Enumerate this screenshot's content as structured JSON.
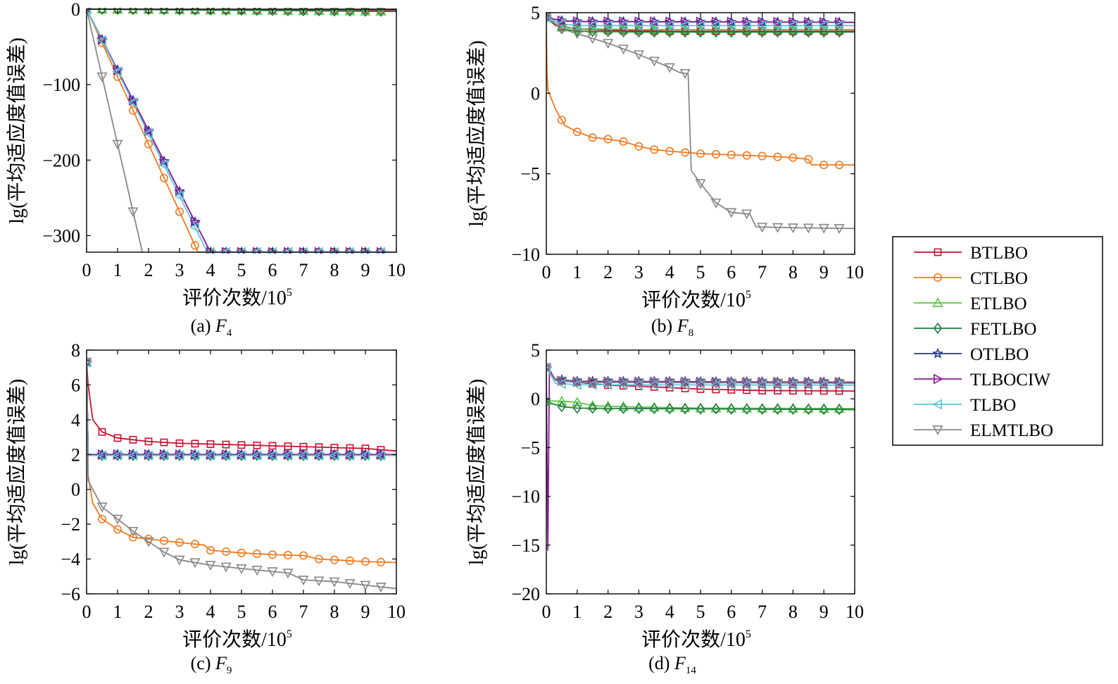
{
  "figure": {
    "legend": {
      "placement": "right",
      "entries": [
        {
          "name": "BTLBO",
          "color": "#c8102e",
          "marker": "square"
        },
        {
          "name": "CTLBO",
          "color": "#ee7b22",
          "marker": "circle"
        },
        {
          "name": "ETLBO",
          "color": "#5cc341",
          "marker": "triangle-up"
        },
        {
          "name": "FETLBO",
          "color": "#1e7a43",
          "marker": "diamond"
        },
        {
          "name": "OTLBO",
          "color": "#273a8c",
          "marker": "star"
        },
        {
          "name": "TLBOCIW",
          "color": "#8a1c9b",
          "marker": "triangle-right"
        },
        {
          "name": "TLBO",
          "color": "#5ec8da",
          "marker": "triangle-left"
        },
        {
          "name": "ELMTLBO",
          "color": "#888888",
          "marker": "triangle-down"
        }
      ]
    }
  },
  "chart_data": [
    {
      "type": "line",
      "caption_prefix": "(a) ",
      "caption_fn": "F",
      "caption_sub": "4",
      "xlabel": "评价次数/10",
      "xlabel_sup": "5",
      "ylabel": "lg(平均适应度值误差)",
      "xlim": [
        0,
        10
      ],
      "ylim": [
        -322,
        0
      ],
      "xticks": [
        0,
        1,
        2,
        3,
        4,
        5,
        6,
        7,
        8,
        9,
        10
      ],
      "yticks": [
        0,
        -100,
        -200,
        -300
      ],
      "ytick_labels": [
        "0",
        "−100",
        "−200",
        "−300"
      ],
      "grid": false,
      "series": [
        {
          "name": "BTLBO",
          "points": [
            [
              0,
              0
            ],
            [
              10,
              -1
            ]
          ]
        },
        {
          "name": "CTLBO",
          "points": [
            [
              0,
              0
            ],
            [
              3.6,
              -322
            ],
            [
              10,
              -322
            ]
          ]
        },
        {
          "name": "ETLBO",
          "points": [
            [
              0,
              0
            ],
            [
              10,
              -3
            ]
          ]
        },
        {
          "name": "FETLBO",
          "points": [
            [
              0,
              0
            ],
            [
              10,
              -3
            ]
          ]
        },
        {
          "name": "OTLBO",
          "points": [
            [
              0,
              0
            ],
            [
              4,
              -322
            ],
            [
              10,
              -322
            ]
          ]
        },
        {
          "name": "TLBOCIW",
          "points": [
            [
              0,
              0
            ],
            [
              4,
              -322
            ],
            [
              10,
              -322
            ]
          ]
        },
        {
          "name": "TLBO",
          "points": [
            [
              0,
              0
            ],
            [
              3.9,
              -322
            ],
            [
              10,
              -322
            ]
          ]
        },
        {
          "name": "ELMTLBO",
          "points": [
            [
              0,
              0
            ],
            [
              1.8,
              -322
            ]
          ]
        }
      ]
    },
    {
      "type": "line",
      "caption_prefix": "(b) ",
      "caption_fn": "F",
      "caption_sub": "8",
      "xlabel": "评价次数/10",
      "xlabel_sup": "5",
      "ylabel": "lg(平均适应度值误差)",
      "xlim": [
        0,
        10
      ],
      "ylim": [
        -10,
        5
      ],
      "xticks": [
        0,
        1,
        2,
        3,
        4,
        5,
        6,
        7,
        8,
        9,
        10
      ],
      "yticks": [
        5,
        0,
        -5,
        -10
      ],
      "ytick_labels": [
        "5",
        "0",
        "−5",
        "−10"
      ],
      "grid": false,
      "series": [
        {
          "name": "BTLBO",
          "points": [
            [
              0,
              4.7
            ],
            [
              0.3,
              4.2
            ],
            [
              1,
              4.0
            ],
            [
              2,
              3.9
            ],
            [
              4,
              3.85
            ],
            [
              10,
              3.85
            ]
          ]
        },
        {
          "name": "CTLBO",
          "points": [
            [
              0,
              4.7
            ],
            [
              0.02,
              1.5
            ],
            [
              0.05,
              0.2
            ],
            [
              0.3,
              -1.0
            ],
            [
              0.6,
              -2.0
            ],
            [
              1,
              -2.4
            ],
            [
              1.5,
              -2.75
            ],
            [
              2,
              -2.85
            ],
            [
              2.5,
              -3.0
            ],
            [
              3,
              -3.3
            ],
            [
              3.5,
              -3.5
            ],
            [
              4,
              -3.6
            ],
            [
              5,
              -3.75
            ],
            [
              7,
              -3.9
            ],
            [
              8,
              -4.0
            ],
            [
              8.5,
              -4.1
            ],
            [
              8.6,
              -4.45
            ],
            [
              10,
              -4.45
            ]
          ]
        },
        {
          "name": "ETLBO",
          "points": [
            [
              0,
              4.7
            ],
            [
              0.5,
              4.1
            ],
            [
              1,
              4.0
            ],
            [
              3,
              3.95
            ],
            [
              10,
              3.95
            ]
          ]
        },
        {
          "name": "FETLBO",
          "points": [
            [
              0,
              4.7
            ],
            [
              0.5,
              4.0
            ],
            [
              1,
              3.85
            ],
            [
              3,
              3.8
            ],
            [
              10,
              3.8
            ]
          ]
        },
        {
          "name": "OTLBO",
          "points": [
            [
              0,
              4.7
            ],
            [
              0.5,
              4.5
            ],
            [
              1,
              4.45
            ],
            [
              10,
              4.4
            ]
          ]
        },
        {
          "name": "TLBOCIW",
          "points": [
            [
              0,
              4.7
            ],
            [
              0.5,
              4.5
            ],
            [
              1,
              4.45
            ],
            [
              10,
              4.4
            ]
          ]
        },
        {
          "name": "TLBO",
          "points": [
            [
              0,
              4.7
            ],
            [
              0.5,
              4.3
            ],
            [
              1,
              4.2
            ],
            [
              10,
              4.2
            ]
          ]
        },
        {
          "name": "ELMTLBO",
          "points": [
            [
              0,
              4.7
            ],
            [
              0.5,
              4.0
            ],
            [
              1,
              3.7
            ],
            [
              2,
              3.1
            ],
            [
              3,
              2.4
            ],
            [
              3.5,
              2.0
            ],
            [
              4,
              1.6
            ],
            [
              4.3,
              1.3
            ],
            [
              4.6,
              1.2
            ],
            [
              4.7,
              -4.8
            ],
            [
              5,
              -5.6
            ],
            [
              5.5,
              -6.8
            ],
            [
              6,
              -7.4
            ],
            [
              6.6,
              -7.5
            ],
            [
              6.8,
              -8.3
            ],
            [
              8,
              -8.35
            ],
            [
              10,
              -8.4
            ]
          ]
        }
      ]
    },
    {
      "type": "line",
      "caption_prefix": "(c) ",
      "caption_fn": "F",
      "caption_sub": "9",
      "xlabel": "评价次数/10",
      "xlabel_sup": "5",
      "ylabel": "lg(平均适应度值误差)",
      "xlim": [
        0,
        10
      ],
      "ylim": [
        -6,
        8
      ],
      "xticks": [
        0,
        1,
        2,
        3,
        4,
        5,
        6,
        7,
        8,
        9,
        10
      ],
      "yticks": [
        8,
        6,
        4,
        2,
        0,
        -2,
        -4,
        -6
      ],
      "ytick_labels": [
        "8",
        "6",
        "4",
        "2",
        "0",
        "−2",
        "−4",
        "−6"
      ],
      "grid": false,
      "series": [
        {
          "name": "BTLBO",
          "points": [
            [
              0,
              7.3
            ],
            [
              0.05,
              6.0
            ],
            [
              0.2,
              4.0
            ],
            [
              0.5,
              3.3
            ],
            [
              1,
              2.95
            ],
            [
              2,
              2.75
            ],
            [
              3,
              2.65
            ],
            [
              5,
              2.55
            ],
            [
              7,
              2.45
            ],
            [
              9,
              2.35
            ],
            [
              10,
              2.2
            ]
          ]
        },
        {
          "name": "CTLBO",
          "points": [
            [
              0,
              7.3
            ],
            [
              0.05,
              0.8
            ],
            [
              0.2,
              -0.8
            ],
            [
              0.5,
              -1.7
            ],
            [
              1,
              -2.3
            ],
            [
              1.5,
              -2.75
            ],
            [
              2,
              -2.85
            ],
            [
              3,
              -3.05
            ],
            [
              3.8,
              -3.2
            ],
            [
              4,
              -3.5
            ],
            [
              5,
              -3.65
            ],
            [
              6,
              -3.75
            ],
            [
              7,
              -3.8
            ],
            [
              7.5,
              -4.0
            ],
            [
              8,
              -4.05
            ],
            [
              9,
              -4.15
            ],
            [
              10,
              -4.2
            ]
          ]
        },
        {
          "name": "ETLBO",
          "points": [
            [
              0,
              7.3
            ],
            [
              0.05,
              2.0
            ],
            [
              10,
              2.0
            ]
          ]
        },
        {
          "name": "FETLBO",
          "points": [
            [
              0,
              7.3
            ],
            [
              0.05,
              1.95
            ],
            [
              10,
              1.95
            ]
          ]
        },
        {
          "name": "OTLBO",
          "points": [
            [
              0,
              7.3
            ],
            [
              0.05,
              2.0
            ],
            [
              10,
              2.0
            ]
          ]
        },
        {
          "name": "TLBOCIW",
          "points": [
            [
              0,
              7.3
            ],
            [
              0.05,
              2.0
            ],
            [
              10,
              2.0
            ]
          ]
        },
        {
          "name": "TLBO",
          "points": [
            [
              0,
              7.3
            ],
            [
              0.05,
              1.95
            ],
            [
              10,
              1.95
            ]
          ]
        },
        {
          "name": "ELMTLBO",
          "points": [
            [
              0,
              7.3
            ],
            [
              0.05,
              0.5
            ],
            [
              0.5,
              -1.0
            ],
            [
              1.5,
              -2.4
            ],
            [
              2,
              -3.0
            ],
            [
              2.5,
              -3.6
            ],
            [
              3,
              -4.05
            ],
            [
              4,
              -4.35
            ],
            [
              5,
              -4.55
            ],
            [
              6.5,
              -4.8
            ],
            [
              7,
              -5.2
            ],
            [
              8,
              -5.3
            ],
            [
              9,
              -5.5
            ],
            [
              10,
              -5.7
            ]
          ]
        }
      ]
    },
    {
      "type": "line",
      "caption_prefix": "(d) ",
      "caption_fn": "F",
      "caption_sub": "14",
      "xlabel": "评价次数/10",
      "xlabel_sup": "5",
      "ylabel": "lg(平均适应度值误差)",
      "xlim": [
        0,
        10
      ],
      "ylim": [
        -20,
        5
      ],
      "xticks": [
        0,
        1,
        2,
        3,
        4,
        5,
        6,
        7,
        8,
        9,
        10
      ],
      "yticks": [
        5,
        0,
        -5,
        -10,
        -15,
        -20
      ],
      "ytick_labels": [
        "5",
        "0",
        "−5",
        "−10",
        "−15",
        "−20"
      ],
      "grid": false,
      "series": [
        {
          "name": "BTLBO",
          "points": [
            [
              0,
              3.2
            ],
            [
              0.3,
              1.9
            ],
            [
              1,
              1.7
            ],
            [
              2,
              1.4
            ],
            [
              3,
              1.3
            ],
            [
              5,
              1.0
            ],
            [
              7,
              0.85
            ],
            [
              10,
              0.8
            ]
          ]
        },
        {
          "name": "CTLBO",
          "points": [
            [
              0,
              3.2
            ],
            [
              0.3,
              1.9
            ],
            [
              1,
              1.7
            ],
            [
              10,
              1.65
            ]
          ]
        },
        {
          "name": "ETLBO",
          "points": [
            [
              0,
              -0.2
            ],
            [
              0.5,
              -0.25
            ],
            [
              1,
              -0.35
            ],
            [
              1.5,
              -0.7
            ],
            [
              3,
              -0.85
            ],
            [
              5,
              -0.95
            ],
            [
              10,
              -1.0
            ]
          ]
        },
        {
          "name": "FETLBO",
          "points": [
            [
              0,
              -0.3
            ],
            [
              0.5,
              -0.8
            ],
            [
              1,
              -0.95
            ],
            [
              3,
              -1.0
            ],
            [
              10,
              -1.1
            ]
          ]
        },
        {
          "name": "OTLBO",
          "points": [
            [
              0,
              3.2
            ],
            [
              0.3,
              2.0
            ],
            [
              1,
              1.8
            ],
            [
              10,
              1.7
            ]
          ]
        },
        {
          "name": "TLBOCIW",
          "points": [
            [
              0,
              3.2
            ],
            [
              0.05,
              -15.5
            ],
            [
              0.1,
              3.0
            ],
            [
              0.3,
              1.9
            ],
            [
              1,
              1.75
            ],
            [
              10,
              1.7
            ]
          ]
        },
        {
          "name": "TLBO",
          "points": [
            [
              0,
              3.2
            ],
            [
              0.3,
              1.6
            ],
            [
              1,
              1.45
            ],
            [
              10,
              1.4
            ]
          ]
        },
        {
          "name": "ELMTLBO",
          "points": [
            [
              0,
              3.2
            ],
            [
              0.3,
              1.9
            ],
            [
              1,
              1.7
            ],
            [
              10,
              1.6
            ]
          ]
        }
      ]
    }
  ]
}
